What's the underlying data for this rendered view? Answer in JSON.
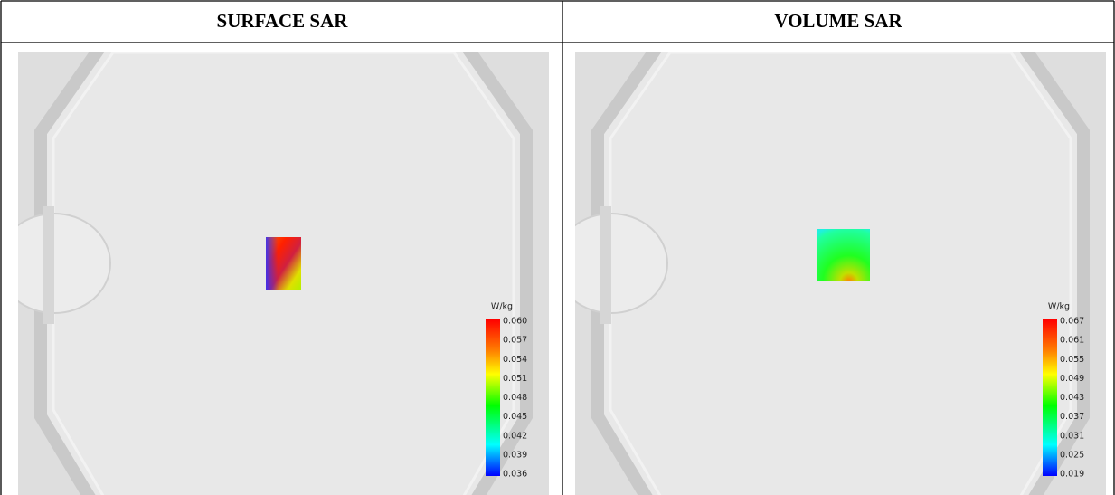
{
  "table": {
    "headers": [
      "SURFACE SAR",
      "VOLUME SAR"
    ]
  },
  "panels": [
    {
      "unit": "W/kg",
      "scale": [
        "0.060",
        "0.057",
        "0.054",
        "0.051",
        "0.048",
        "0.045",
        "0.042",
        "0.039",
        "0.036"
      ]
    },
    {
      "unit": "W/kg",
      "scale": [
        "0.067",
        "0.061",
        "0.055",
        "0.049",
        "0.043",
        "0.037",
        "0.031",
        "0.025",
        "0.019"
      ]
    }
  ]
}
